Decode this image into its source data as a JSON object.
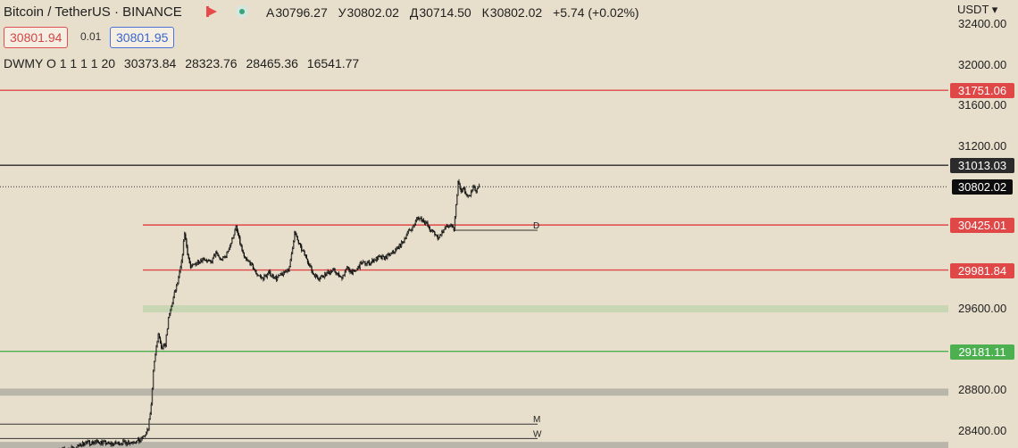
{
  "header": {
    "title": "Bitcoin / TetherUS · BINANCE",
    "ohlc": [
      {
        "k": "А",
        "v": "30796.27"
      },
      {
        "k": "У",
        "v": "30802.02"
      },
      {
        "k": "Д",
        "v": "30714.50"
      },
      {
        "k": "К",
        "v": "30802.02"
      }
    ],
    "change": "+5.74 (+0.02%)",
    "sell_price": "30801.94",
    "spread": "0.01",
    "buy_price": "30801.95",
    "indicator_name": "DWMY O 1 1 1 1 20",
    "indicator_values": [
      "30373.84",
      "28323.76",
      "28465.36",
      "16541.77"
    ],
    "currency": "USDT"
  },
  "colors": {
    "background": "#e7dfcb",
    "red": "#e04848",
    "green": "#4caf50",
    "black": "#2a2a2a",
    "zone_green": "#c9d6b3",
    "zone_gray": "#b9b5ab"
  },
  "chart_data": {
    "type": "candlestick",
    "symbol": "BTC/USDT",
    "ylim": [
      28230,
      32640
    ],
    "y_ticks": [
      {
        "value": 32400,
        "label": "32400.00"
      },
      {
        "value": 32000,
        "label": "32000.00"
      },
      {
        "value": 31600,
        "label": "31600.00"
      },
      {
        "value": 31200,
        "label": "31200.00"
      },
      {
        "value": 29600,
        "label": "29600.00"
      },
      {
        "value": 28800,
        "label": "28800.00"
      },
      {
        "value": 28400,
        "label": "28400.00"
      }
    ],
    "price_tags": [
      {
        "value": 31751.06,
        "label": "31751.06",
        "color": "red"
      },
      {
        "value": 31013.03,
        "label": "31013.03",
        "color": "black"
      },
      {
        "value": 30802.02,
        "label": "30802.02",
        "color": "current"
      },
      {
        "value": 30425.01,
        "label": "30425.01",
        "color": "red"
      },
      {
        "value": 29981.84,
        "label": "29981.84",
        "color": "red"
      },
      {
        "value": 29181.11,
        "label": "29181.11",
        "color": "green"
      }
    ],
    "levels": [
      {
        "value": 31751.06,
        "style": "red",
        "extent": "full"
      },
      {
        "value": 31013.03,
        "style": "black",
        "extent": "full"
      },
      {
        "value": 30802.02,
        "style": "dotted",
        "extent": "full"
      },
      {
        "value": 30425.01,
        "style": "red",
        "extent": "partial-right"
      },
      {
        "value": 29981.84,
        "style": "red",
        "extent": "partial-right"
      },
      {
        "value": 29181.11,
        "style": "green",
        "extent": "full"
      }
    ],
    "zones": [
      {
        "value": 29600,
        "style": "green",
        "extent": "partial-right"
      },
      {
        "value": 28780,
        "style": "gray",
        "extent": "full"
      },
      {
        "value": 28255,
        "style": "gray",
        "extent": "full"
      }
    ],
    "pivots": [
      {
        "label": "D",
        "value": 30373.84
      },
      {
        "label": "M",
        "value": 28465.36
      },
      {
        "label": "W",
        "value": 28323.76
      }
    ],
    "price_path": [
      [
        0,
        28200
      ],
      [
        20,
        28230
      ],
      [
        30,
        28280
      ],
      [
        45,
        28290
      ],
      [
        55,
        28270
      ],
      [
        70,
        28285
      ],
      [
        85,
        28300
      ],
      [
        90,
        28360
      ],
      [
        93,
        28420
      ],
      [
        96,
        28650
      ],
      [
        98,
        29000
      ],
      [
        100,
        29150
      ],
      [
        103,
        29350
      ],
      [
        106,
        29200
      ],
      [
        110,
        29250
      ],
      [
        113,
        29500
      ],
      [
        116,
        29620
      ],
      [
        119,
        29750
      ],
      [
        122,
        29850
      ],
      [
        126,
        30050
      ],
      [
        129,
        30350
      ],
      [
        132,
        30150
      ],
      [
        135,
        30000
      ],
      [
        140,
        30050
      ],
      [
        148,
        30100
      ],
      [
        155,
        30050
      ],
      [
        160,
        30150
      ],
      [
        165,
        30080
      ],
      [
        170,
        30120
      ],
      [
        175,
        30250
      ],
      [
        180,
        30400
      ],
      [
        184,
        30250
      ],
      [
        188,
        30100
      ],
      [
        194,
        30050
      ],
      [
        200,
        29950
      ],
      [
        206,
        29900
      ],
      [
        213,
        29950
      ],
      [
        220,
        29900
      ],
      [
        227,
        29950
      ],
      [
        233,
        30000
      ],
      [
        238,
        30350
      ],
      [
        244,
        30200
      ],
      [
        250,
        30100
      ],
      [
        256,
        29950
      ],
      [
        262,
        29900
      ],
      [
        270,
        29950
      ],
      [
        277,
        29980
      ],
      [
        284,
        29900
      ],
      [
        290,
        30000
      ],
      [
        297,
        29950
      ],
      [
        304,
        30050
      ],
      [
        312,
        30050
      ],
      [
        320,
        30100
      ],
      [
        327,
        30100
      ],
      [
        335,
        30150
      ],
      [
        340,
        30200
      ],
      [
        345,
        30250
      ],
      [
        350,
        30350
      ],
      [
        355,
        30400
      ],
      [
        360,
        30500
      ],
      [
        364,
        30480
      ],
      [
        368,
        30450
      ],
      [
        372,
        30380
      ],
      [
        376,
        30350
      ],
      [
        380,
        30300
      ],
      [
        384,
        30350
      ],
      [
        388,
        30400
      ],
      [
        392,
        30420
      ],
      [
        396,
        30380
      ],
      [
        400,
        30850
      ],
      [
        403,
        30750
      ],
      [
        406,
        30780
      ],
      [
        409,
        30700
      ],
      [
        412,
        30720
      ],
      [
        415,
        30800
      ],
      [
        418,
        30750
      ],
      [
        421,
        30802
      ]
    ]
  }
}
